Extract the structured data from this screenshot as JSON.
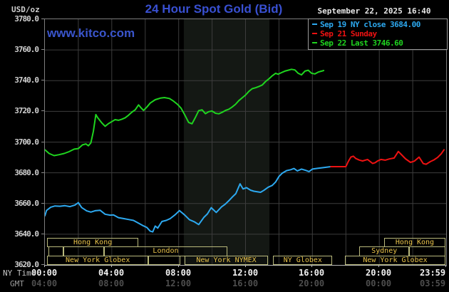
{
  "header": {
    "unit_label": "USD/oz",
    "title": "24 Hour Spot Gold (Bid)",
    "datetime": "September 22, 2025 16:40",
    "watermark": "www.kitco.com",
    "legend": [
      {
        "label": "Sep 19 NY close 3684.00",
        "color": "#2da9f0"
      },
      {
        "label": "Sep 21 Sunday",
        "color": "#ee1212"
      },
      {
        "label": "Sep 22 Last 3746.60",
        "color": "#1fd41f"
      }
    ]
  },
  "axes": {
    "ny_label": "NY Time",
    "gmt_label": "GMT",
    "y_ticks": [
      "3780.0",
      "3760.0",
      "3740.0",
      "3720.0",
      "3700.0",
      "3680.0",
      "3660.0",
      "3640.0",
      "3620.0"
    ],
    "x_ticks": [
      {
        "t": 0,
        "ny": "00:00",
        "gmt": "04:00"
      },
      {
        "t": 4,
        "ny": "04:00",
        "gmt": "08:00"
      },
      {
        "t": 8,
        "ny": "08:00",
        "gmt": "12:00"
      },
      {
        "t": 12,
        "ny": "12:00",
        "gmt": "16:00"
      },
      {
        "t": 16,
        "ny": "16:00",
        "gmt": "20:00"
      },
      {
        "t": 20,
        "ny": "20:00",
        "gmt": "00:00"
      },
      {
        "t": 23.983,
        "ny": "23:59",
        "gmt": "03:59"
      }
    ]
  },
  "chart_data": {
    "type": "line",
    "title": "24 Hour Spot Gold (Bid)",
    "xlabel": "NY Time (hours 00:00-23:59)",
    "ylabel": "USD/oz",
    "ylim": [
      3620,
      3780
    ],
    "xlim_hours": [
      0,
      24
    ],
    "grid": true,
    "grid_color": "#3d3d3d",
    "y_grid_step": 20,
    "x_grid_step_hours": 2,
    "shaded_band_hours": [
      8.31,
      13.43
    ],
    "shaded_band_color": "#141814",
    "legend_position": "top-right",
    "series": [
      {
        "name": "Sep 19 NY close 3684.00",
        "color": "#2da9f0",
        "width": 2,
        "points": [
          [
            0.0,
            3652.0
          ],
          [
            0.1,
            3655.5
          ],
          [
            0.35,
            3657.6
          ],
          [
            0.6,
            3658.4
          ],
          [
            0.9,
            3658.2
          ],
          [
            1.2,
            3658.6
          ],
          [
            1.5,
            3658.0
          ],
          [
            1.8,
            3659.0
          ],
          [
            2.0,
            3660.6
          ],
          [
            2.2,
            3657.4
          ],
          [
            2.5,
            3655.2
          ],
          [
            2.75,
            3654.4
          ],
          [
            3.0,
            3655.3
          ],
          [
            3.3,
            3655.6
          ],
          [
            3.6,
            3653.0
          ],
          [
            3.9,
            3652.4
          ],
          [
            4.1,
            3652.6
          ],
          [
            4.4,
            3650.8
          ],
          [
            4.7,
            3650.2
          ],
          [
            5.0,
            3649.6
          ],
          [
            5.3,
            3649.0
          ],
          [
            5.6,
            3647.2
          ],
          [
            5.9,
            3645.4
          ],
          [
            6.1,
            3644.4
          ],
          [
            6.3,
            3642.0
          ],
          [
            6.45,
            3641.5
          ],
          [
            6.6,
            3645.3
          ],
          [
            6.75,
            3644.0
          ],
          [
            7.0,
            3648.3
          ],
          [
            7.25,
            3649.0
          ],
          [
            7.5,
            3650.2
          ],
          [
            7.8,
            3652.8
          ],
          [
            8.05,
            3655.4
          ],
          [
            8.35,
            3652.6
          ],
          [
            8.65,
            3649.4
          ],
          [
            8.95,
            3648.0
          ],
          [
            9.2,
            3646.3
          ],
          [
            9.5,
            3650.9
          ],
          [
            9.72,
            3653.2
          ],
          [
            9.95,
            3657.3
          ],
          [
            10.25,
            3654.2
          ],
          [
            10.57,
            3657.9
          ],
          [
            10.78,
            3659.5
          ],
          [
            11.0,
            3661.8
          ],
          [
            11.2,
            3664.1
          ],
          [
            11.42,
            3666.4
          ],
          [
            11.67,
            3672.8
          ],
          [
            11.85,
            3669.5
          ],
          [
            12.06,
            3670.3
          ],
          [
            12.3,
            3668.7
          ],
          [
            12.5,
            3668.0
          ],
          [
            12.9,
            3667.3
          ],
          [
            13.1,
            3668.6
          ],
          [
            13.35,
            3670.6
          ],
          [
            13.6,
            3671.8
          ],
          [
            13.8,
            3674.0
          ],
          [
            14.0,
            3677.6
          ],
          [
            14.2,
            3679.8
          ],
          [
            14.45,
            3681.4
          ],
          [
            14.7,
            3682.0
          ],
          [
            14.9,
            3682.8
          ],
          [
            15.1,
            3681.2
          ],
          [
            15.35,
            3682.4
          ],
          [
            15.6,
            3681.6
          ],
          [
            15.8,
            3680.8
          ],
          [
            16.0,
            3682.4
          ],
          [
            16.3,
            3682.9
          ],
          [
            16.6,
            3683.3
          ],
          [
            17.1,
            3684.0
          ]
        ]
      },
      {
        "name": "Sep 21 Sunday",
        "color": "#ee1212",
        "width": 2,
        "points": [
          [
            17.1,
            3684.0
          ],
          [
            18.0,
            3684.0
          ],
          [
            18.15,
            3687.5
          ],
          [
            18.3,
            3690.2
          ],
          [
            18.45,
            3690.8
          ],
          [
            18.6,
            3689.3
          ],
          [
            18.8,
            3688.3
          ],
          [
            19.0,
            3687.7
          ],
          [
            19.3,
            3688.7
          ],
          [
            19.6,
            3686.1
          ],
          [
            19.75,
            3686.6
          ],
          [
            19.9,
            3687.7
          ],
          [
            20.1,
            3688.7
          ],
          [
            20.35,
            3688.2
          ],
          [
            20.6,
            3689.0
          ],
          [
            20.89,
            3689.6
          ],
          [
            21.14,
            3693.9
          ],
          [
            21.36,
            3691.4
          ],
          [
            21.57,
            3689.1
          ],
          [
            21.87,
            3686.8
          ],
          [
            22.1,
            3687.6
          ],
          [
            22.38,
            3690.2
          ],
          [
            22.63,
            3686.0
          ],
          [
            22.8,
            3685.6
          ],
          [
            23.06,
            3687.3
          ],
          [
            23.27,
            3688.4
          ],
          [
            23.49,
            3690.0
          ],
          [
            23.7,
            3692.3
          ],
          [
            23.87,
            3695.0
          ]
        ]
      },
      {
        "name": "Sep 22 Last 3746.60",
        "color": "#1fd41f",
        "width": 2,
        "points": [
          [
            0.0,
            3695.0
          ],
          [
            0.25,
            3692.6
          ],
          [
            0.55,
            3691.2
          ],
          [
            0.85,
            3691.8
          ],
          [
            1.15,
            3692.6
          ],
          [
            1.45,
            3693.8
          ],
          [
            1.75,
            3695.4
          ],
          [
            2.0,
            3695.8
          ],
          [
            2.25,
            3698.2
          ],
          [
            2.45,
            3698.8
          ],
          [
            2.6,
            3697.6
          ],
          [
            2.75,
            3699.5
          ],
          [
            2.9,
            3707.0
          ],
          [
            3.05,
            3717.9
          ],
          [
            3.15,
            3716.0
          ],
          [
            3.4,
            3712.5
          ],
          [
            3.6,
            3710.3
          ],
          [
            3.8,
            3712.0
          ],
          [
            4.0,
            3713.3
          ],
          [
            4.2,
            3714.6
          ],
          [
            4.4,
            3714.2
          ],
          [
            4.6,
            3714.9
          ],
          [
            4.8,
            3715.8
          ],
          [
            5.0,
            3717.5
          ],
          [
            5.2,
            3719.5
          ],
          [
            5.4,
            3721.0
          ],
          [
            5.6,
            3724.2
          ],
          [
            5.75,
            3722.3
          ],
          [
            5.9,
            3720.6
          ],
          [
            6.1,
            3722.8
          ],
          [
            6.3,
            3725.4
          ],
          [
            6.6,
            3727.6
          ],
          [
            6.9,
            3728.6
          ],
          [
            7.15,
            3729.0
          ],
          [
            7.45,
            3728.4
          ],
          [
            7.7,
            3726.6
          ],
          [
            7.95,
            3724.4
          ],
          [
            8.15,
            3722.0
          ],
          [
            8.35,
            3718.0
          ],
          [
            8.6,
            3712.8
          ],
          [
            8.8,
            3711.9
          ],
          [
            9.0,
            3716.0
          ],
          [
            9.2,
            3720.5
          ],
          [
            9.4,
            3721.0
          ],
          [
            9.6,
            3718.5
          ],
          [
            9.8,
            3719.8
          ],
          [
            10.0,
            3720.2
          ],
          [
            10.2,
            3718.8
          ],
          [
            10.4,
            3718.4
          ],
          [
            10.6,
            3719.4
          ],
          [
            10.8,
            3720.6
          ],
          [
            11.0,
            3721.4
          ],
          [
            11.2,
            3722.8
          ],
          [
            11.4,
            3724.6
          ],
          [
            11.6,
            3727.0
          ],
          [
            11.8,
            3728.8
          ],
          [
            12.0,
            3730.6
          ],
          [
            12.2,
            3733.0
          ],
          [
            12.4,
            3734.8
          ],
          [
            12.6,
            3735.4
          ],
          [
            12.8,
            3736.2
          ],
          [
            13.0,
            3737.2
          ],
          [
            13.2,
            3739.4
          ],
          [
            13.4,
            3741.2
          ],
          [
            13.6,
            3743.2
          ],
          [
            13.8,
            3744.8
          ],
          [
            13.95,
            3744.2
          ],
          [
            14.15,
            3745.2
          ],
          [
            14.35,
            3746.2
          ],
          [
            14.55,
            3746.8
          ],
          [
            14.75,
            3747.4
          ],
          [
            14.95,
            3747.0
          ],
          [
            15.15,
            3744.8
          ],
          [
            15.35,
            3743.8
          ],
          [
            15.55,
            3746.2
          ],
          [
            15.75,
            3746.8
          ],
          [
            15.95,
            3744.8
          ],
          [
            16.15,
            3744.4
          ],
          [
            16.35,
            3745.6
          ],
          [
            16.55,
            3746.2
          ],
          [
            16.67,
            3746.6
          ]
        ]
      }
    ],
    "sessions": [
      {
        "row": 0,
        "boxes": [
          {
            "label": "Hong Kong",
            "t1": 0.13,
            "t2": 5.6
          },
          {
            "label": "Hong Kong",
            "t1": 20.3,
            "t2": 23.95
          }
        ]
      },
      {
        "row": 1,
        "boxes": [
          {
            "label": "",
            "t1": 0.2,
            "t2": 1.1
          },
          {
            "label": "",
            "t1": 1.1,
            "t2": 3.55
          },
          {
            "label": "London",
            "t1": 3.55,
            "t2": 10.9
          },
          {
            "label": "Sydney",
            "t1": 18.8,
            "t2": 21.8
          },
          {
            "label": "",
            "t1": 21.8,
            "t2": 23.95
          }
        ]
      },
      {
        "row": 2,
        "boxes": [
          {
            "label": "New York Globex",
            "t1": 0.13,
            "t2": 6.2
          },
          {
            "label": "",
            "t1": 6.2,
            "t2": 8.1
          },
          {
            "label": "New York NYMEX",
            "t1": 8.35,
            "t2": 13.35
          },
          {
            "label": "NY Globex",
            "t1": 13.65,
            "t2": 17.2
          },
          {
            "label": "New York Globex",
            "t1": 17.95,
            "t2": 23.95
          }
        ]
      }
    ]
  }
}
